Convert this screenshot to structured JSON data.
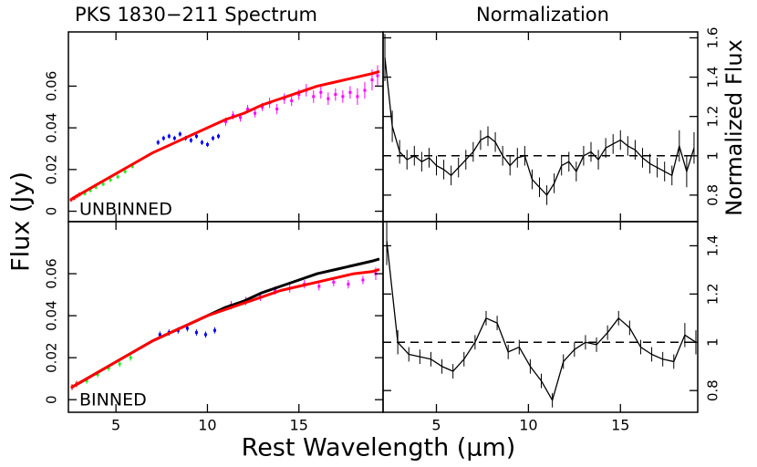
{
  "chart_data": [
    {
      "type": "errorbar",
      "title": "PKS 1830−211 Spectrum",
      "ylabel": "Flux (Jy)",
      "annotation": "UNBINNED",
      "xlim": [
        2.4,
        19.6
      ],
      "ylim": [
        -0.005,
        0.086
      ],
      "xticks": [
        5,
        10,
        15
      ],
      "yticks": [
        0,
        0.02,
        0.04,
        0.06
      ],
      "series": [
        {
          "mode": "points",
          "color": "#ff0000",
          "x": [
            2.55,
            2.7,
            2.85,
            3.0
          ],
          "values": [
            0.0055,
            0.0062,
            0.0072,
            0.008
          ],
          "errors": [
            0.001,
            0.001,
            0.001,
            0.001
          ]
        },
        {
          "mode": "points",
          "color": "#22ee22",
          "x": [
            3.3,
            3.6,
            3.9,
            4.3,
            4.7,
            5.1,
            5.5,
            5.9
          ],
          "values": [
            0.0085,
            0.01,
            0.0115,
            0.013,
            0.015,
            0.0165,
            0.019,
            0.0215
          ],
          "errors": [
            0.001,
            0.001,
            0.001,
            0.001,
            0.001,
            0.001,
            0.001,
            0.001
          ]
        },
        {
          "mode": "points",
          "color": "#0000ff",
          "x": [
            7.3,
            7.6,
            7.9,
            8.2,
            8.5,
            8.8,
            9.1,
            9.4,
            9.7,
            10.0,
            10.3,
            10.6
          ],
          "values": [
            0.033,
            0.035,
            0.036,
            0.035,
            0.037,
            0.035,
            0.034,
            0.036,
            0.033,
            0.032,
            0.035,
            0.036
          ],
          "errors": [
            0.0012,
            0.0012,
            0.0012,
            0.0012,
            0.0012,
            0.0012,
            0.0012,
            0.0012,
            0.0012,
            0.0012,
            0.0012,
            0.0012
          ]
        },
        {
          "mode": "points",
          "color": "#ff00ff",
          "x": [
            11.0,
            11.4,
            11.8,
            12.2,
            12.6,
            13.0,
            13.4,
            13.8,
            14.2,
            14.6,
            15.0,
            15.4,
            15.8,
            16.2,
            16.6,
            17.0,
            17.4,
            17.8,
            18.2,
            18.6,
            19.0,
            19.3
          ],
          "values": [
            0.043,
            0.046,
            0.045,
            0.049,
            0.047,
            0.05,
            0.052,
            0.049,
            0.054,
            0.053,
            0.056,
            0.058,
            0.055,
            0.057,
            0.054,
            0.056,
            0.055,
            0.057,
            0.055,
            0.058,
            0.063,
            0.065
          ],
          "errors": [
            0.002,
            0.002,
            0.002,
            0.002,
            0.002,
            0.002,
            0.0025,
            0.0025,
            0.0025,
            0.0025,
            0.0025,
            0.003,
            0.003,
            0.003,
            0.003,
            0.003,
            0.003,
            0.003,
            0.004,
            0.004,
            0.005,
            0.005
          ]
        },
        {
          "mode": "line",
          "color": "#ff0000",
          "x": [
            2.6,
            3,
            4,
            5,
            6,
            7,
            8,
            9,
            10,
            11,
            12,
            13,
            14,
            15,
            16,
            17,
            18,
            19,
            19.4
          ],
          "values": [
            0.006,
            0.008,
            0.013,
            0.018,
            0.023,
            0.028,
            0.032,
            0.036,
            0.04,
            0.044,
            0.047,
            0.051,
            0.054,
            0.057,
            0.06,
            0.062,
            0.064,
            0.066,
            0.067
          ]
        }
      ]
    },
    {
      "type": "errorbar",
      "title": "Normalization",
      "ylabel": "Normalized Flux",
      "xlim": [
        2.1,
        19.2
      ],
      "ylim": [
        0.665,
        1.63
      ],
      "xticks": [
        5,
        10,
        15
      ],
      "yticks": [
        0.8,
        1,
        1.2,
        1.4,
        1.6
      ],
      "hline": 1,
      "series": [
        {
          "mode": "line",
          "color": "#000000",
          "x": [
            2.2,
            2.6,
            3.0,
            3.4,
            3.8,
            4.2,
            4.6,
            5.0,
            5.4,
            5.8,
            6.2,
            6.6,
            7.0,
            7.4,
            7.8,
            8.2,
            8.6,
            9.0,
            9.4,
            9.8,
            10.2,
            10.6,
            11.0,
            11.4,
            11.8,
            12.2,
            12.6,
            13.0,
            13.4,
            13.8,
            14.2,
            14.6,
            15.0,
            15.4,
            15.8,
            16.2,
            16.6,
            17.0,
            17.4,
            17.8,
            18.2,
            18.6,
            19.0
          ],
          "values": [
            1.5,
            1.15,
            1.02,
            0.98,
            1.0,
            0.97,
            0.99,
            0.95,
            0.93,
            0.9,
            0.94,
            0.98,
            1.02,
            1.08,
            1.1,
            1.07,
            1.0,
            0.95,
            0.99,
            1.0,
            0.88,
            0.84,
            0.8,
            0.86,
            0.95,
            0.97,
            0.92,
            1.0,
            1.02,
            0.98,
            1.04,
            1.06,
            1.08,
            1.05,
            1.03,
            0.99,
            0.96,
            0.94,
            0.92,
            0.9,
            1.05,
            0.92,
            1.04
          ],
          "errors": [
            0.12,
            0.08,
            0.06,
            0.05,
            0.05,
            0.05,
            0.05,
            0.05,
            0.05,
            0.05,
            0.05,
            0.05,
            0.05,
            0.05,
            0.05,
            0.05,
            0.05,
            0.05,
            0.05,
            0.05,
            0.05,
            0.05,
            0.05,
            0.05,
            0.05,
            0.05,
            0.05,
            0.05,
            0.05,
            0.05,
            0.05,
            0.05,
            0.05,
            0.05,
            0.05,
            0.05,
            0.05,
            0.05,
            0.05,
            0.05,
            0.08,
            0.08,
            0.08
          ]
        }
      ]
    },
    {
      "type": "errorbar",
      "xlabel": "Rest Wavelength (μm)",
      "annotation": "BINNED",
      "xlim": [
        2.4,
        19.6
      ],
      "ylim": [
        -0.006,
        0.0848
      ],
      "xticks": [
        5,
        10,
        15
      ],
      "yticks": [
        0,
        0.02,
        0.04,
        0.06
      ],
      "series": [
        {
          "mode": "points",
          "color": "#ff0000",
          "x": [
            2.6,
            2.85
          ],
          "values": [
            0.006,
            0.0075
          ],
          "errors": [
            0.0015,
            0.0015
          ]
        },
        {
          "mode": "points",
          "color": "#22ee22",
          "x": [
            3.4,
            4.0,
            4.6,
            5.2,
            5.8
          ],
          "values": [
            0.009,
            0.012,
            0.015,
            0.017,
            0.02
          ],
          "errors": [
            0.0015,
            0.0015,
            0.0015,
            0.0015,
            0.0015
          ]
        },
        {
          "mode": "points",
          "color": "#0000ff",
          "x": [
            7.4,
            7.9,
            8.4,
            8.9,
            9.4,
            9.9,
            10.4
          ],
          "values": [
            0.031,
            0.032,
            0.033,
            0.034,
            0.032,
            0.031,
            0.033
          ],
          "errors": [
            0.0015,
            0.0015,
            0.0015,
            0.0015,
            0.0015,
            0.0015,
            0.0015
          ]
        },
        {
          "mode": "points",
          "color": "#ff00ff",
          "x": [
            11.3,
            12.1,
            12.9,
            13.7,
            14.5,
            15.3,
            16.1,
            16.9,
            17.7,
            18.5,
            19.2
          ],
          "values": [
            0.045,
            0.047,
            0.049,
            0.052,
            0.053,
            0.055,
            0.054,
            0.056,
            0.055,
            0.057,
            0.06
          ],
          "errors": [
            0.002,
            0.002,
            0.002,
            0.002,
            0.002,
            0.002,
            0.002,
            0.002,
            0.002,
            0.002,
            0.003
          ]
        },
        {
          "mode": "line",
          "color": "#000000",
          "x": [
            2.6,
            3,
            4,
            5,
            6,
            7,
            8,
            9,
            10,
            11,
            12,
            13,
            14,
            15,
            16,
            17,
            18,
            19,
            19.4
          ],
          "values": [
            0.006,
            0.008,
            0.013,
            0.018,
            0.023,
            0.028,
            0.032,
            0.036,
            0.04,
            0.044,
            0.047,
            0.051,
            0.054,
            0.057,
            0.06,
            0.062,
            0.064,
            0.066,
            0.067
          ]
        },
        {
          "mode": "line",
          "color": "#ff0000",
          "x": [
            2.6,
            3,
            4,
            5,
            6,
            7,
            8,
            9,
            10,
            11,
            12,
            13,
            14,
            15,
            16,
            17,
            18,
            19,
            19.4
          ],
          "values": [
            0.006,
            0.008,
            0.013,
            0.018,
            0.023,
            0.028,
            0.032,
            0.036,
            0.04,
            0.043,
            0.046,
            0.049,
            0.052,
            0.054,
            0.056,
            0.058,
            0.06,
            0.061,
            0.062
          ]
        }
      ]
    },
    {
      "type": "errorbar",
      "xlim": [
        2.1,
        19.2
      ],
      "ylim": [
        0.71,
        1.5
      ],
      "xticks": [
        5,
        10,
        15
      ],
      "yticks": [
        0.8,
        1,
        1.2,
        1.4
      ],
      "hline": 1,
      "series": [
        {
          "mode": "line",
          "color": "#000000",
          "x": [
            2.3,
            2.9,
            3.5,
            4.1,
            4.7,
            5.3,
            5.9,
            6.5,
            7.1,
            7.7,
            8.3,
            8.9,
            9.5,
            10.1,
            10.7,
            11.3,
            11.9,
            12.5,
            13.1,
            13.7,
            14.3,
            14.9,
            15.5,
            16.1,
            16.7,
            17.3,
            17.9,
            18.5,
            19.1
          ],
          "values": [
            1.42,
            1.0,
            0.95,
            0.94,
            0.93,
            0.9,
            0.88,
            0.93,
            1.0,
            1.1,
            1.08,
            0.96,
            0.98,
            0.9,
            0.84,
            0.76,
            0.92,
            0.97,
            1.0,
            0.99,
            1.04,
            1.1,
            1.06,
            0.98,
            0.95,
            0.93,
            0.92,
            1.03,
            1.0
          ],
          "errors": [
            0.1,
            0.05,
            0.03,
            0.03,
            0.03,
            0.03,
            0.03,
            0.03,
            0.03,
            0.03,
            0.03,
            0.03,
            0.03,
            0.03,
            0.03,
            0.03,
            0.03,
            0.03,
            0.03,
            0.03,
            0.03,
            0.03,
            0.03,
            0.03,
            0.03,
            0.03,
            0.03,
            0.05,
            0.05
          ]
        }
      ]
    }
  ]
}
